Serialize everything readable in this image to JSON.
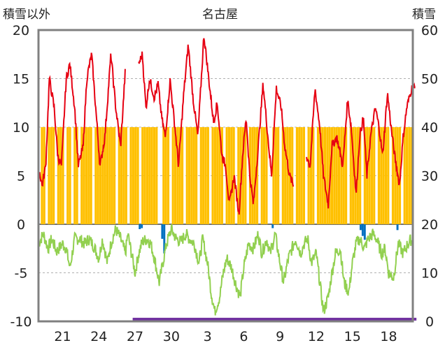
{
  "chart_data": {
    "type": "line",
    "title": "名古屋",
    "left_axis_label": "積雪以外",
    "right_axis_label": "積雪",
    "left_ylim": [
      -10,
      20
    ],
    "left_ticks": [
      "20",
      "15",
      "10",
      "5",
      "0",
      "-5",
      "-10"
    ],
    "right_ylim": [
      0,
      60
    ],
    "right_ticks": [
      "60",
      "50",
      "40",
      "30",
      "20",
      "10",
      "0"
    ],
    "x_tick_labels": [
      "21",
      "24",
      "27",
      "30",
      "3",
      "6",
      "9",
      "12",
      "15",
      "18"
    ],
    "x_tick_days": [
      2,
      5,
      8,
      11,
      14,
      17,
      20,
      23,
      26,
      29
    ],
    "x_range_days": [
      0,
      31
    ],
    "grid": "horizontal dashed",
    "colors": {
      "max_temp": "#e60012",
      "min_temp": "#92d050",
      "sunshine": "#ffc000",
      "precipitation": "#0070c0",
      "snow_depth": "#7030a0",
      "frame": "#808080"
    },
    "series": [
      {
        "type": "bar",
        "color": "#ffc000",
        "values": [
          0,
          10,
          10,
          0,
          10,
          10,
          10,
          0,
          10,
          10,
          10,
          0,
          10,
          10,
          0,
          10,
          10,
          0,
          10,
          10,
          10,
          10,
          10,
          0,
          10,
          10,
          10,
          10,
          10,
          10,
          10,
          10,
          10,
          0,
          10,
          10,
          10,
          10,
          0,
          10,
          10,
          10,
          10,
          0,
          10,
          10,
          10,
          10,
          10,
          10,
          10,
          0,
          0,
          10,
          10,
          10,
          0,
          10,
          10,
          10,
          10,
          10,
          0,
          10,
          10,
          10,
          10,
          10,
          0,
          10,
          10,
          10,
          10,
          0,
          10,
          10,
          10,
          10,
          10,
          0,
          10,
          10,
          10,
          10,
          0,
          10,
          10,
          10,
          10,
          0,
          10,
          10,
          10,
          10,
          0,
          10,
          10,
          10,
          0,
          0,
          10,
          10,
          10,
          0,
          10,
          10,
          10,
          10,
          10,
          0,
          10,
          10,
          10,
          10,
          0,
          10,
          10,
          10,
          0,
          10,
          10,
          10,
          10,
          10,
          10,
          10,
          10,
          10,
          10,
          10,
          10,
          10,
          0,
          10,
          10,
          10,
          10,
          10,
          0,
          10,
          10,
          10,
          10,
          10,
          0,
          10,
          10,
          10,
          10,
          10,
          0,
          10,
          10,
          10,
          10,
          0,
          10,
          10,
          10,
          10
        ]
      },
      {
        "type": "bar",
        "color": "#0070c0",
        "values": [
          0,
          0,
          0,
          0,
          0,
          0,
          0,
          0,
          0,
          0,
          0,
          0,
          0,
          0,
          0,
          0,
          0,
          0,
          0,
          0,
          0,
          0,
          0,
          0,
          0,
          0,
          0,
          0,
          0,
          0,
          0,
          0,
          0,
          0,
          0,
          0,
          0,
          0,
          0,
          0,
          0,
          0,
          0,
          0,
          0,
          0,
          0,
          0,
          0,
          -0.5,
          -0.4,
          0,
          0,
          0,
          0,
          0,
          0,
          0,
          0,
          0,
          -1.5,
          -3,
          0,
          0,
          0,
          0,
          0,
          0,
          0,
          0,
          0,
          0,
          0,
          0,
          0,
          0,
          0,
          0,
          0,
          0,
          0,
          0,
          0,
          0,
          0,
          0,
          0,
          0,
          0,
          0,
          0,
          0,
          0,
          0,
          0,
          0,
          0,
          0,
          0,
          0,
          0,
          0,
          0,
          0,
          0,
          0,
          0,
          0,
          0,
          0,
          0,
          0,
          0,
          0,
          -0.4,
          0,
          0,
          0,
          0,
          0,
          0,
          0,
          0,
          0,
          0,
          0,
          0,
          0,
          0,
          0,
          0,
          0,
          0,
          0,
          0,
          0,
          0,
          0,
          0,
          0,
          0,
          0,
          0,
          0,
          0,
          0,
          0,
          0,
          0,
          0,
          0,
          0,
          0,
          0,
          0,
          0,
          0,
          -0.6,
          -1.2,
          -1.6,
          0,
          0,
          0,
          0,
          0,
          0,
          0,
          0,
          0,
          0,
          0,
          0,
          0,
          0,
          0,
          -0.6,
          0,
          0,
          0,
          0,
          0,
          0,
          0
        ]
      },
      {
        "type": "line",
        "color": "#e60012",
        "segments": [
          {
            "x_start": 0.1,
            "x_end": 7.2,
            "anchors": [
              [
                0,
                6
              ],
              [
                0.3,
                4
              ],
              [
                0.6,
                6
              ],
              [
                0.9,
                15
              ],
              [
                1.3,
                12
              ],
              [
                1.6,
                7
              ],
              [
                1.9,
                6
              ],
              [
                2.3,
                15
              ],
              [
                2.6,
                16.5
              ],
              [
                3,
                12
              ],
              [
                3.3,
                6
              ],
              [
                3.7,
                8
              ],
              [
                4,
                15
              ],
              [
                4.4,
                17.5
              ],
              [
                4.8,
                11
              ],
              [
                5.1,
                6
              ],
              [
                5.5,
                9
              ],
              [
                6,
                17.5
              ],
              [
                6.4,
                12
              ],
              [
                6.8,
                8
              ],
              [
                7.2,
                16
              ]
            ]
          },
          {
            "x_start": 8.3,
            "x_end": 21.1,
            "anchors": [
              [
                8.3,
                16.5
              ],
              [
                8.6,
                17.5
              ],
              [
                8.9,
                12
              ],
              [
                9.2,
                15
              ],
              [
                9.6,
                13
              ],
              [
                9.9,
                14.5
              ],
              [
                10.2,
                11
              ],
              [
                10.5,
                9
              ],
              [
                10.9,
                14.8
              ],
              [
                11.3,
                10
              ],
              [
                11.6,
                6
              ],
              [
                12,
                13
              ],
              [
                12.4,
                18.5
              ],
              [
                12.8,
                13
              ],
              [
                13.2,
                9
              ],
              [
                13.7,
                19.5
              ],
              [
                14.1,
                15
              ],
              [
                14.5,
                10.5
              ],
              [
                14.8,
                12.5
              ],
              [
                15.2,
                7
              ],
              [
                15.5,
                6
              ],
              [
                15.8,
                2
              ],
              [
                16.2,
                5
              ],
              [
                16.6,
                1
              ],
              [
                16.9,
                7
              ],
              [
                17.2,
                11
              ],
              [
                17.5,
                5
              ],
              [
                17.8,
                2
              ],
              [
                18.2,
                8
              ],
              [
                18.6,
                14.5
              ],
              [
                19,
                9
              ],
              [
                19.3,
                5
              ],
              [
                19.7,
                14
              ],
              [
                20.1,
                12
              ],
              [
                20.4,
                8
              ],
              [
                20.8,
                5
              ],
              [
                21.1,
                4
              ]
            ]
          },
          {
            "x_start": 22.2,
            "x_end": 31.2,
            "anchors": [
              [
                22.2,
                7
              ],
              [
                22.5,
                6
              ],
              [
                22.9,
                14
              ],
              [
                23.3,
                10
              ],
              [
                23.6,
                5
              ],
              [
                24,
                2
              ],
              [
                24.3,
                8
              ],
              [
                24.7,
                9
              ],
              [
                25.2,
                6
              ],
              [
                25.6,
                12.8
              ],
              [
                25.9,
                10
              ],
              [
                26.3,
                3
              ],
              [
                26.6,
                9
              ],
              [
                26.9,
                11
              ],
              [
                27.2,
                5
              ],
              [
                27.5,
                9
              ],
              [
                27.9,
                12
              ],
              [
                28.2,
                10
              ],
              [
                28.5,
                7
              ],
              [
                28.9,
                13.5
              ],
              [
                29.2,
                10
              ],
              [
                29.5,
                7
              ],
              [
                29.9,
                4
              ],
              [
                30.2,
                9
              ],
              [
                30.5,
                12
              ],
              [
                30.9,
                14
              ]
            ]
          }
        ]
      },
      {
        "type": "line",
        "color": "#92d050",
        "anchors": [
          [
            0,
            -2
          ],
          [
            0.4,
            -1
          ],
          [
            0.8,
            -2.5
          ],
          [
            1.1,
            -1.5
          ],
          [
            1.5,
            -2.8
          ],
          [
            2,
            -2
          ],
          [
            2.3,
            -2.5
          ],
          [
            2.6,
            -4.5
          ],
          [
            3,
            -1.5
          ],
          [
            3.4,
            -1.5
          ],
          [
            3.8,
            -2
          ],
          [
            4.2,
            -1.5
          ],
          [
            4.6,
            -2.3
          ],
          [
            5,
            -3.5
          ],
          [
            5.3,
            -1.5
          ],
          [
            5.7,
            -4
          ],
          [
            6,
            -2
          ],
          [
            6.4,
            -0.5
          ],
          [
            6.8,
            -1.5
          ],
          [
            7.2,
            -3
          ],
          [
            7.4,
            -1
          ],
          [
            7.7,
            -3
          ],
          [
            8,
            -5
          ],
          [
            8.3,
            -3
          ],
          [
            8.6,
            -1.8
          ],
          [
            9,
            -1.5
          ],
          [
            9.3,
            -2
          ],
          [
            9.6,
            -3.5
          ],
          [
            10,
            -6
          ],
          [
            10.3,
            -4
          ],
          [
            10.6,
            -2
          ],
          [
            11,
            -0.5
          ],
          [
            11.4,
            -1.5
          ],
          [
            11.8,
            -1.8
          ],
          [
            12.2,
            -1
          ],
          [
            12.5,
            -1.5
          ],
          [
            12.9,
            -2
          ],
          [
            13.3,
            -4
          ],
          [
            13.6,
            -1.5
          ],
          [
            14,
            -4
          ],
          [
            14.3,
            -7
          ],
          [
            14.6,
            -9
          ],
          [
            15,
            -7.5
          ],
          [
            15.3,
            -5
          ],
          [
            15.6,
            -3.5
          ],
          [
            16,
            -4.5
          ],
          [
            16.3,
            -6
          ],
          [
            16.7,
            -7.5
          ],
          [
            17,
            -4.5
          ],
          [
            17.4,
            -2
          ],
          [
            17.8,
            -2.5
          ],
          [
            18.2,
            -1
          ],
          [
            18.5,
            -3
          ],
          [
            18.9,
            -1.5
          ],
          [
            19.2,
            -3
          ],
          [
            19.6,
            -1
          ],
          [
            20,
            -4
          ],
          [
            20.3,
            -6
          ],
          [
            20.7,
            -3.5
          ],
          [
            21,
            -2.5
          ],
          [
            21.3,
            -1.5
          ],
          [
            21.7,
            -3
          ],
          [
            22,
            -2
          ],
          [
            22.3,
            -1.5
          ],
          [
            22.6,
            -4
          ],
          [
            23,
            -3
          ],
          [
            23.3,
            -6
          ],
          [
            23.6,
            -9
          ],
          [
            24,
            -7.5
          ],
          [
            24.3,
            -5
          ],
          [
            24.6,
            -3
          ],
          [
            25,
            -2.5
          ],
          [
            25.3,
            -6
          ],
          [
            25.7,
            -7
          ],
          [
            26,
            -4
          ],
          [
            26.3,
            -2
          ],
          [
            26.6,
            -1.5
          ],
          [
            27,
            -2.5
          ],
          [
            27.3,
            -1.5
          ],
          [
            27.7,
            -1
          ],
          [
            28,
            -1.5
          ],
          [
            28.4,
            -3
          ],
          [
            28.7,
            -2.5
          ],
          [
            29,
            -5
          ],
          [
            29.4,
            -5.5
          ],
          [
            29.8,
            -2
          ],
          [
            30.2,
            -3
          ],
          [
            30.6,
            -2
          ],
          [
            30.9,
            -1.5
          ]
        ]
      },
      {
        "type": "line",
        "color": "#7030a0",
        "name": "",
        "segments": [
          {
            "x_start": 7.8,
            "x_end": 31.3,
            "y_right": 0.3
          }
        ]
      }
    ]
  }
}
